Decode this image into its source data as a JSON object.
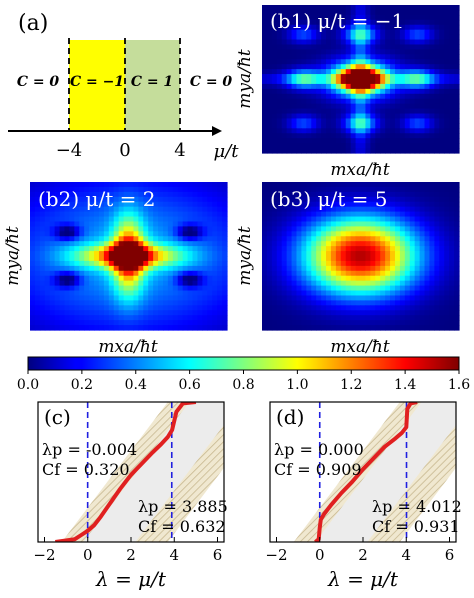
{
  "figure": {
    "panel_a": {
      "label": "(a)",
      "regions": [
        {
          "label": "C = 0",
          "color": "#ffffff"
        },
        {
          "label": "C = −1",
          "color": "#ffff00"
        },
        {
          "label": "C = 1",
          "color": "#c5dd9b"
        },
        {
          "label": "C = 0",
          "color": "#ffffff"
        }
      ],
      "boundaries": [
        -4,
        0,
        4
      ],
      "ticks": [
        "−4",
        "0",
        "4"
      ],
      "axis_label": "μ/t"
    },
    "heatmaps": [
      {
        "label": "(b1) μ/t = −1",
        "xlabel": "mxa/ħt",
        "ylabel": "mya/ħt",
        "pattern": "lattice"
      },
      {
        "label": "(b2) μ/t = 2",
        "xlabel": "mxa/ħt",
        "ylabel": "mya/ħt",
        "pattern": "star"
      },
      {
        "label": "(b3) μ/t = 5",
        "xlabel": "mxa/ħt",
        "ylabel": "mya/ħt",
        "pattern": "gaussian"
      }
    ],
    "colorbar": {
      "range": [
        0.0,
        1.6
      ],
      "ticks": [
        "0.0",
        "0.2",
        "0.4",
        "0.6",
        "0.8",
        "1.0",
        "1.2",
        "1.4",
        "1.6"
      ]
    },
    "line_panels": [
      {
        "label": "(c)",
        "xlabel": "λ = μ/t",
        "xticks": [
          "−2",
          "0",
          "2",
          "4",
          "6"
        ],
        "annotations": [
          {
            "lambda": "λp = -0.004",
            "cf": "Cf = 0.320"
          },
          {
            "lambda": "λp = 3.885",
            "cf": "Cf = 0.632"
          }
        ]
      },
      {
        "label": "(d)",
        "xlabel": "λ = μ/t",
        "xticks": [
          "−2",
          "0",
          "2",
          "4",
          "6"
        ],
        "annotations": [
          {
            "lambda": "λp = 0.000",
            "cf": "Cf = 0.909"
          },
          {
            "lambda": "λp = 4.012",
            "cf": "Cf = 0.931"
          }
        ]
      }
    ]
  },
  "chart_data": [
    {
      "type": "line",
      "title": "(c)",
      "xlabel": "λ = μ/t",
      "xlim": [
        -2.3,
        6.3
      ],
      "vlines": [
        -0.004,
        3.885
      ],
      "series": [
        {
          "x": [
            -1.5,
            -0.6,
            -0.3,
            0.0,
            0.3,
            0.6,
            1.0,
            1.5,
            2.0,
            2.5,
            3.0,
            3.4,
            3.7,
            3.9,
            4.1,
            4.4,
            5.0
          ],
          "y": [
            0.0,
            0.02,
            0.05,
            0.08,
            0.12,
            0.18,
            0.27,
            0.38,
            0.48,
            0.56,
            0.64,
            0.7,
            0.75,
            0.8,
            0.93,
            0.99,
            1.0
          ]
        }
      ]
    },
    {
      "type": "line",
      "title": "(d)",
      "xlabel": "λ = μ/t",
      "xlim": [
        -2.3,
        6.3
      ],
      "vlines": [
        0.0,
        4.012
      ],
      "series": [
        {
          "x": [
            -0.2,
            -0.05,
            0.0,
            0.05,
            0.2,
            0.5,
            1.0,
            1.5,
            2.0,
            2.5,
            3.0,
            3.5,
            3.8,
            4.0,
            4.05,
            4.2,
            4.5
          ],
          "y": [
            0.0,
            0.02,
            0.1,
            0.16,
            0.2,
            0.26,
            0.35,
            0.43,
            0.52,
            0.6,
            0.68,
            0.74,
            0.78,
            0.82,
            0.95,
            0.99,
            1.0
          ]
        }
      ]
    }
  ]
}
